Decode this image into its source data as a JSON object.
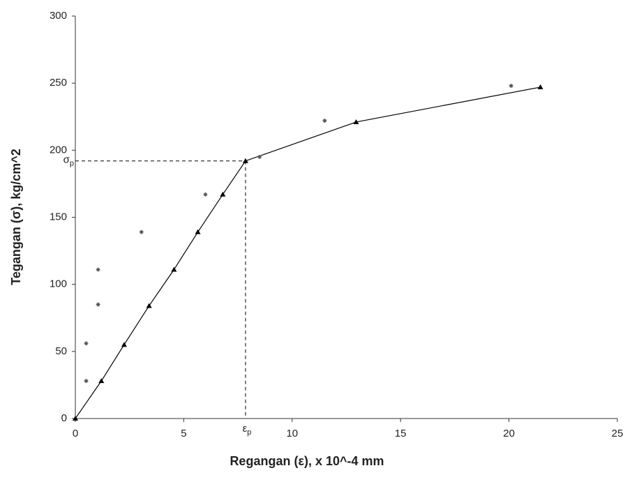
{
  "chart_data": {
    "type": "scatter",
    "x_label": "Regangan (ε), x 10^-4 mm",
    "y_label": "Tegangan (σ), kg/cm^2",
    "xlim": [
      0,
      25
    ],
    "ylim": [
      0,
      300
    ],
    "xticks": [
      0,
      5,
      10,
      15,
      20,
      25
    ],
    "yticks": [
      0,
      50,
      100,
      150,
      200,
      250,
      300
    ],
    "grid": false,
    "series": [
      {
        "color": "#000000",
        "marker": "triangle",
        "line": true,
        "x": [
          0,
          1.2,
          2.25,
          3.4,
          4.55,
          5.65,
          6.8,
          7.85,
          12.95,
          21.45
        ],
        "values": [
          0,
          28,
          55,
          84,
          111,
          139,
          167,
          192,
          221,
          247
        ]
      },
      {
        "color": "#555555",
        "marker": "star",
        "line": false,
        "x": [
          0.5,
          0.5,
          1.05,
          1.05,
          3.05,
          6.0,
          8.5,
          11.5,
          20.1
        ],
        "values": [
          28,
          56,
          85,
          111,
          139,
          167,
          195,
          222,
          248
        ]
      }
    ],
    "proportional_limit": {
      "x": 7.85,
      "y": 192,
      "x_symbol": "ε",
      "y_symbol": "σ",
      "subscript": "p"
    }
  }
}
